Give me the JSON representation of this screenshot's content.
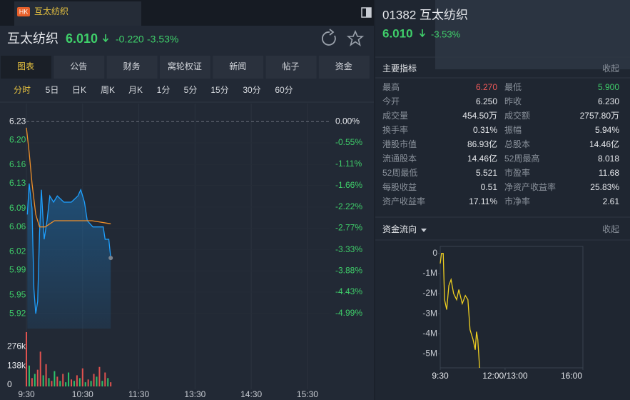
{
  "tab": {
    "badge": "HK",
    "name": "互太纺织"
  },
  "header": {
    "name": "互太纺织",
    "price": "6.010",
    "change": "-0.220",
    "change_pct": "-3.53%"
  },
  "nav": [
    "图表",
    "公告",
    "财务",
    "窝轮权证",
    "新闻",
    "帖子",
    "资金"
  ],
  "periods": [
    "分时",
    "5日",
    "日K",
    "周K",
    "月K",
    "1分",
    "5分",
    "15分",
    "30分",
    "60分"
  ],
  "intraday": {
    "type": "line",
    "xlim": [
      0,
      330
    ],
    "xticks": [
      {
        "value": 0,
        "label": "9:30"
      },
      {
        "value": 60,
        "label": "10:30"
      },
      {
        "value": 120,
        "label": "11:30"
      },
      {
        "value": 180,
        "label": "13:30"
      },
      {
        "value": 240,
        "label": "14:30"
      },
      {
        "value": 300,
        "label": "15:30"
      }
    ],
    "ylim": [
      5.896,
      6.259
    ],
    "yticks": [
      6.23,
      {
        "value": 6.2,
        "label": "6.20"
      },
      6.16,
      6.13,
      6.09,
      6.06,
      6.02,
      5.99,
      5.95,
      5.92
    ],
    "y2lim": [
      -5.38,
      0.47
    ],
    "y2ticks": [
      {
        "value": 0,
        "label": "0.00%"
      },
      {
        "value": -0.55,
        "label": "-0.55%"
      },
      {
        "value": -1.11,
        "label": "-1.11%"
      },
      {
        "value": -1.66,
        "label": "-1.66%"
      },
      {
        "value": -2.22,
        "label": "-2.22%"
      },
      {
        "value": -2.77,
        "label": "-2.77%"
      },
      {
        "value": -3.33,
        "label": "-3.33%"
      },
      {
        "value": -3.88,
        "label": "-3.88%"
      },
      {
        "value": -4.43,
        "label": "-4.43%"
      },
      {
        "value": -4.99,
        "label": "-4.99%"
      }
    ],
    "price": {
      "color": "#1ea0ff",
      "x": [
        1,
        3,
        6,
        8,
        10,
        12,
        14,
        16,
        19,
        22,
        25,
        29,
        33,
        40,
        48,
        55,
        58,
        62,
        65,
        71,
        78,
        82,
        84,
        88,
        90
      ],
      "values": [
        6.08,
        6.13,
        6.09,
        5.96,
        5.92,
        5.94,
        6.05,
        6.12,
        6.04,
        6.07,
        6.11,
        6.1,
        6.11,
        6.1,
        6.1,
        6.11,
        6.12,
        6.1,
        6.07,
        6.06,
        6.06,
        6.06,
        6.04,
        6.04,
        6.01
      ]
    },
    "average": {
      "color": "#f0902a",
      "x": [
        0,
        3,
        6,
        10,
        14,
        20,
        30,
        50,
        70,
        90
      ],
      "values": [
        6.22,
        6.18,
        6.13,
        6.08,
        6.06,
        6.06,
        6.07,
        6.07,
        6.07,
        6.065
      ]
    },
    "volume": {
      "ylim": [
        0,
        390000
      ],
      "yticks": [
        {
          "value": 276000,
          "label": "276k"
        },
        {
          "value": 138000,
          "label": "138k"
        },
        0
      ],
      "x": [
        0,
        3,
        6,
        9,
        12,
        15,
        18,
        21,
        24,
        27,
        30,
        33,
        36,
        39,
        42,
        45,
        48,
        51,
        54,
        57,
        60,
        63,
        66,
        69,
        72,
        75,
        78,
        81,
        84,
        87,
        90
      ],
      "values": [
        390000,
        150000,
        60000,
        90000,
        120000,
        250000,
        80000,
        160000,
        60000,
        40000,
        110000,
        70000,
        40000,
        90000,
        30000,
        100000,
        50000,
        40000,
        80000,
        60000,
        130000,
        30000,
        50000,
        40000,
        90000,
        70000,
        140000,
        40000,
        100000,
        60000,
        30000
      ],
      "colors": [
        "#e0524f",
        "#2ec26a",
        "#e0524f",
        "#2ec26a",
        "#e0524f",
        "#e0524f",
        "#2ec26a",
        "#e0524f",
        "#2ec26a",
        "#e0524f",
        "#2ec26a",
        "#e0524f",
        "#2ec26a",
        "#e0524f",
        "#2ec26a",
        "#2ec26a",
        "#e0524f",
        "#2ec26a",
        "#e0524f",
        "#2ec26a",
        "#e0524f",
        "#2ec26a",
        "#e0524f",
        "#2ec26a",
        "#e0524f",
        "#2ec26a",
        "#e0524f",
        "#2ec26a",
        "#e0524f",
        "#2ec26a",
        "#e0524f"
      ]
    }
  },
  "right": {
    "code": "01382 互太纺织",
    "price": "6.010",
    "change_pct": "-3.53%",
    "metrics_title": "主要指标",
    "metrics_collapse": "收起",
    "metrics": [
      {
        "label": "最高",
        "value": "6.270",
        "color": "#f05a5a"
      },
      {
        "label": "最低",
        "value": "5.900",
        "color": "#3fcf6a"
      },
      {
        "label": "今开",
        "value": "6.250"
      },
      {
        "label": "昨收",
        "value": "6.230"
      },
      {
        "label": "成交量",
        "value": "454.50万"
      },
      {
        "label": "成交额",
        "value": "2757.80万"
      },
      {
        "label": "换手率",
        "value": "0.31%"
      },
      {
        "label": "振幅",
        "value": "5.94%"
      },
      {
        "label": "港股市值",
        "value": "86.93亿"
      },
      {
        "label": "总股本",
        "value": "14.46亿"
      },
      {
        "label": "流通股本",
        "value": "14.46亿"
      },
      {
        "label": "52周最高",
        "value": "8.018"
      },
      {
        "label": "52周最低",
        "value": "5.521"
      },
      {
        "label": "市盈率",
        "value": "11.68"
      },
      {
        "label": "每股收益",
        "value": "0.51"
      },
      {
        "label": "净资产收益率",
        "value": "25.83%"
      },
      {
        "label": "资产收益率",
        "value": "17.11%"
      },
      {
        "label": "市净率",
        "value": "2.61"
      }
    ],
    "flow": {
      "type": "line",
      "title": "资金流向",
      "collapse": "收起",
      "color": "#f0d020",
      "xlim": [
        0,
        330
      ],
      "xticks": [
        {
          "value": 0,
          "label": "9:30"
        },
        {
          "value": 150,
          "label": "12:00/13:00"
        },
        {
          "value": 330,
          "label": "16:00"
        }
      ],
      "ylim": [
        -5.7,
        0.35
      ],
      "yticks": [
        0,
        {
          "value": -1,
          "label": "-1M"
        },
        {
          "value": -2,
          "label": "-2M"
        },
        {
          "value": -3,
          "label": "-3M"
        },
        {
          "value": -4,
          "label": "-4M"
        },
        {
          "value": -5,
          "label": "-5M"
        }
      ],
      "x": [
        0,
        3,
        7,
        10,
        15,
        20,
        25,
        31,
        38,
        43,
        51,
        58,
        64,
        69,
        76,
        81,
        84,
        87,
        91
      ],
      "values": [
        -0.5,
        0,
        0,
        -2.3,
        -2.8,
        -1.6,
        -1.3,
        -2.0,
        -2.3,
        -1.8,
        -2.5,
        -2.1,
        -2.3,
        -3.8,
        -4.3,
        -4.8,
        -3.9,
        -4.3,
        -5.7
      ]
    }
  }
}
